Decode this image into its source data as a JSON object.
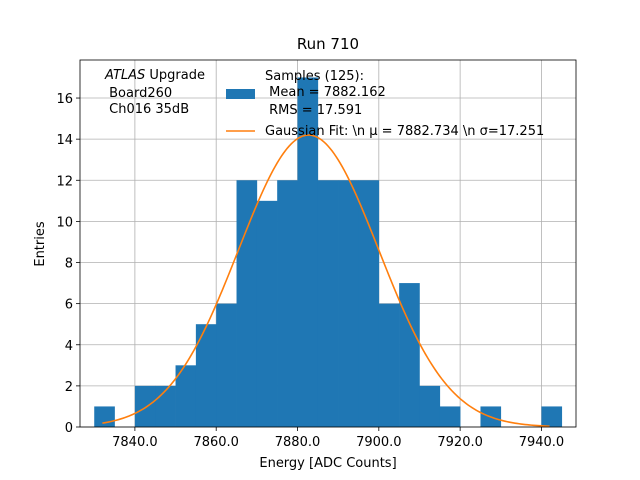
{
  "chart_data": {
    "type": "bar",
    "title": "Run 710",
    "xlabel": "Energy [ADC Counts]",
    "ylabel": "Entries",
    "xlim": [
      7826.5,
      7948.5
    ],
    "ylim": [
      0,
      17.85
    ],
    "xticks": [
      7840,
      7860,
      7880,
      7900,
      7920,
      7940
    ],
    "xtick_labels": [
      "7840.0",
      "7860.0",
      "7880.0",
      "7900.0",
      "7920.0",
      "7940.0"
    ],
    "yticks": [
      0,
      2,
      4,
      6,
      8,
      10,
      12,
      14,
      16
    ],
    "ytick_labels": [
      "0",
      "2",
      "4",
      "6",
      "8",
      "10",
      "12",
      "14",
      "16"
    ],
    "grid": true,
    "bin_edges": [
      7830,
      7835,
      7840,
      7845,
      7850,
      7855,
      7860,
      7865,
      7870,
      7875,
      7880,
      7885,
      7890,
      7895,
      7900,
      7905,
      7910,
      7915,
      7920,
      7925,
      7930,
      7935,
      7940,
      7945
    ],
    "counts": [
      1,
      0,
      2,
      2,
      3,
      5,
      6,
      12,
      11,
      12,
      17,
      12,
      12,
      12,
      6,
      7,
      2,
      1,
      0,
      1,
      0,
      0,
      1
    ],
    "bar_color": "#1f77b4",
    "series": [
      {
        "name": "Samples (125):\n Mean = 7882.162\n RMS = 17.591",
        "kind": "histogram",
        "color": "#1f77b4"
      },
      {
        "name": "Gaussian Fit: \\n $\\mu$ = 7882.734 \\n $\\sigma$=17.251",
        "kind": "line",
        "color": "#ff7f0e",
        "fit": {
          "mu": 7882.734,
          "sigma": 17.251,
          "amplitude": 14.2,
          "x_range": [
            7832,
            7942
          ]
        }
      }
    ],
    "legend_placement": "top-center",
    "legend_lines": {
      "samples": [
        "Samples (125):",
        " Mean = 7882.162",
        " RMS = 17.591"
      ],
      "fit": "Gaussian Fit: \\n μ = 7882.734 \\n σ=17.251"
    },
    "annotation": {
      "lines": [
        "ATLAS Upgrade",
        " Board260",
        " Ch016 35dB"
      ],
      "italic_word": "ATLAS",
      "rest_of_first_line": " Upgrade"
    }
  }
}
